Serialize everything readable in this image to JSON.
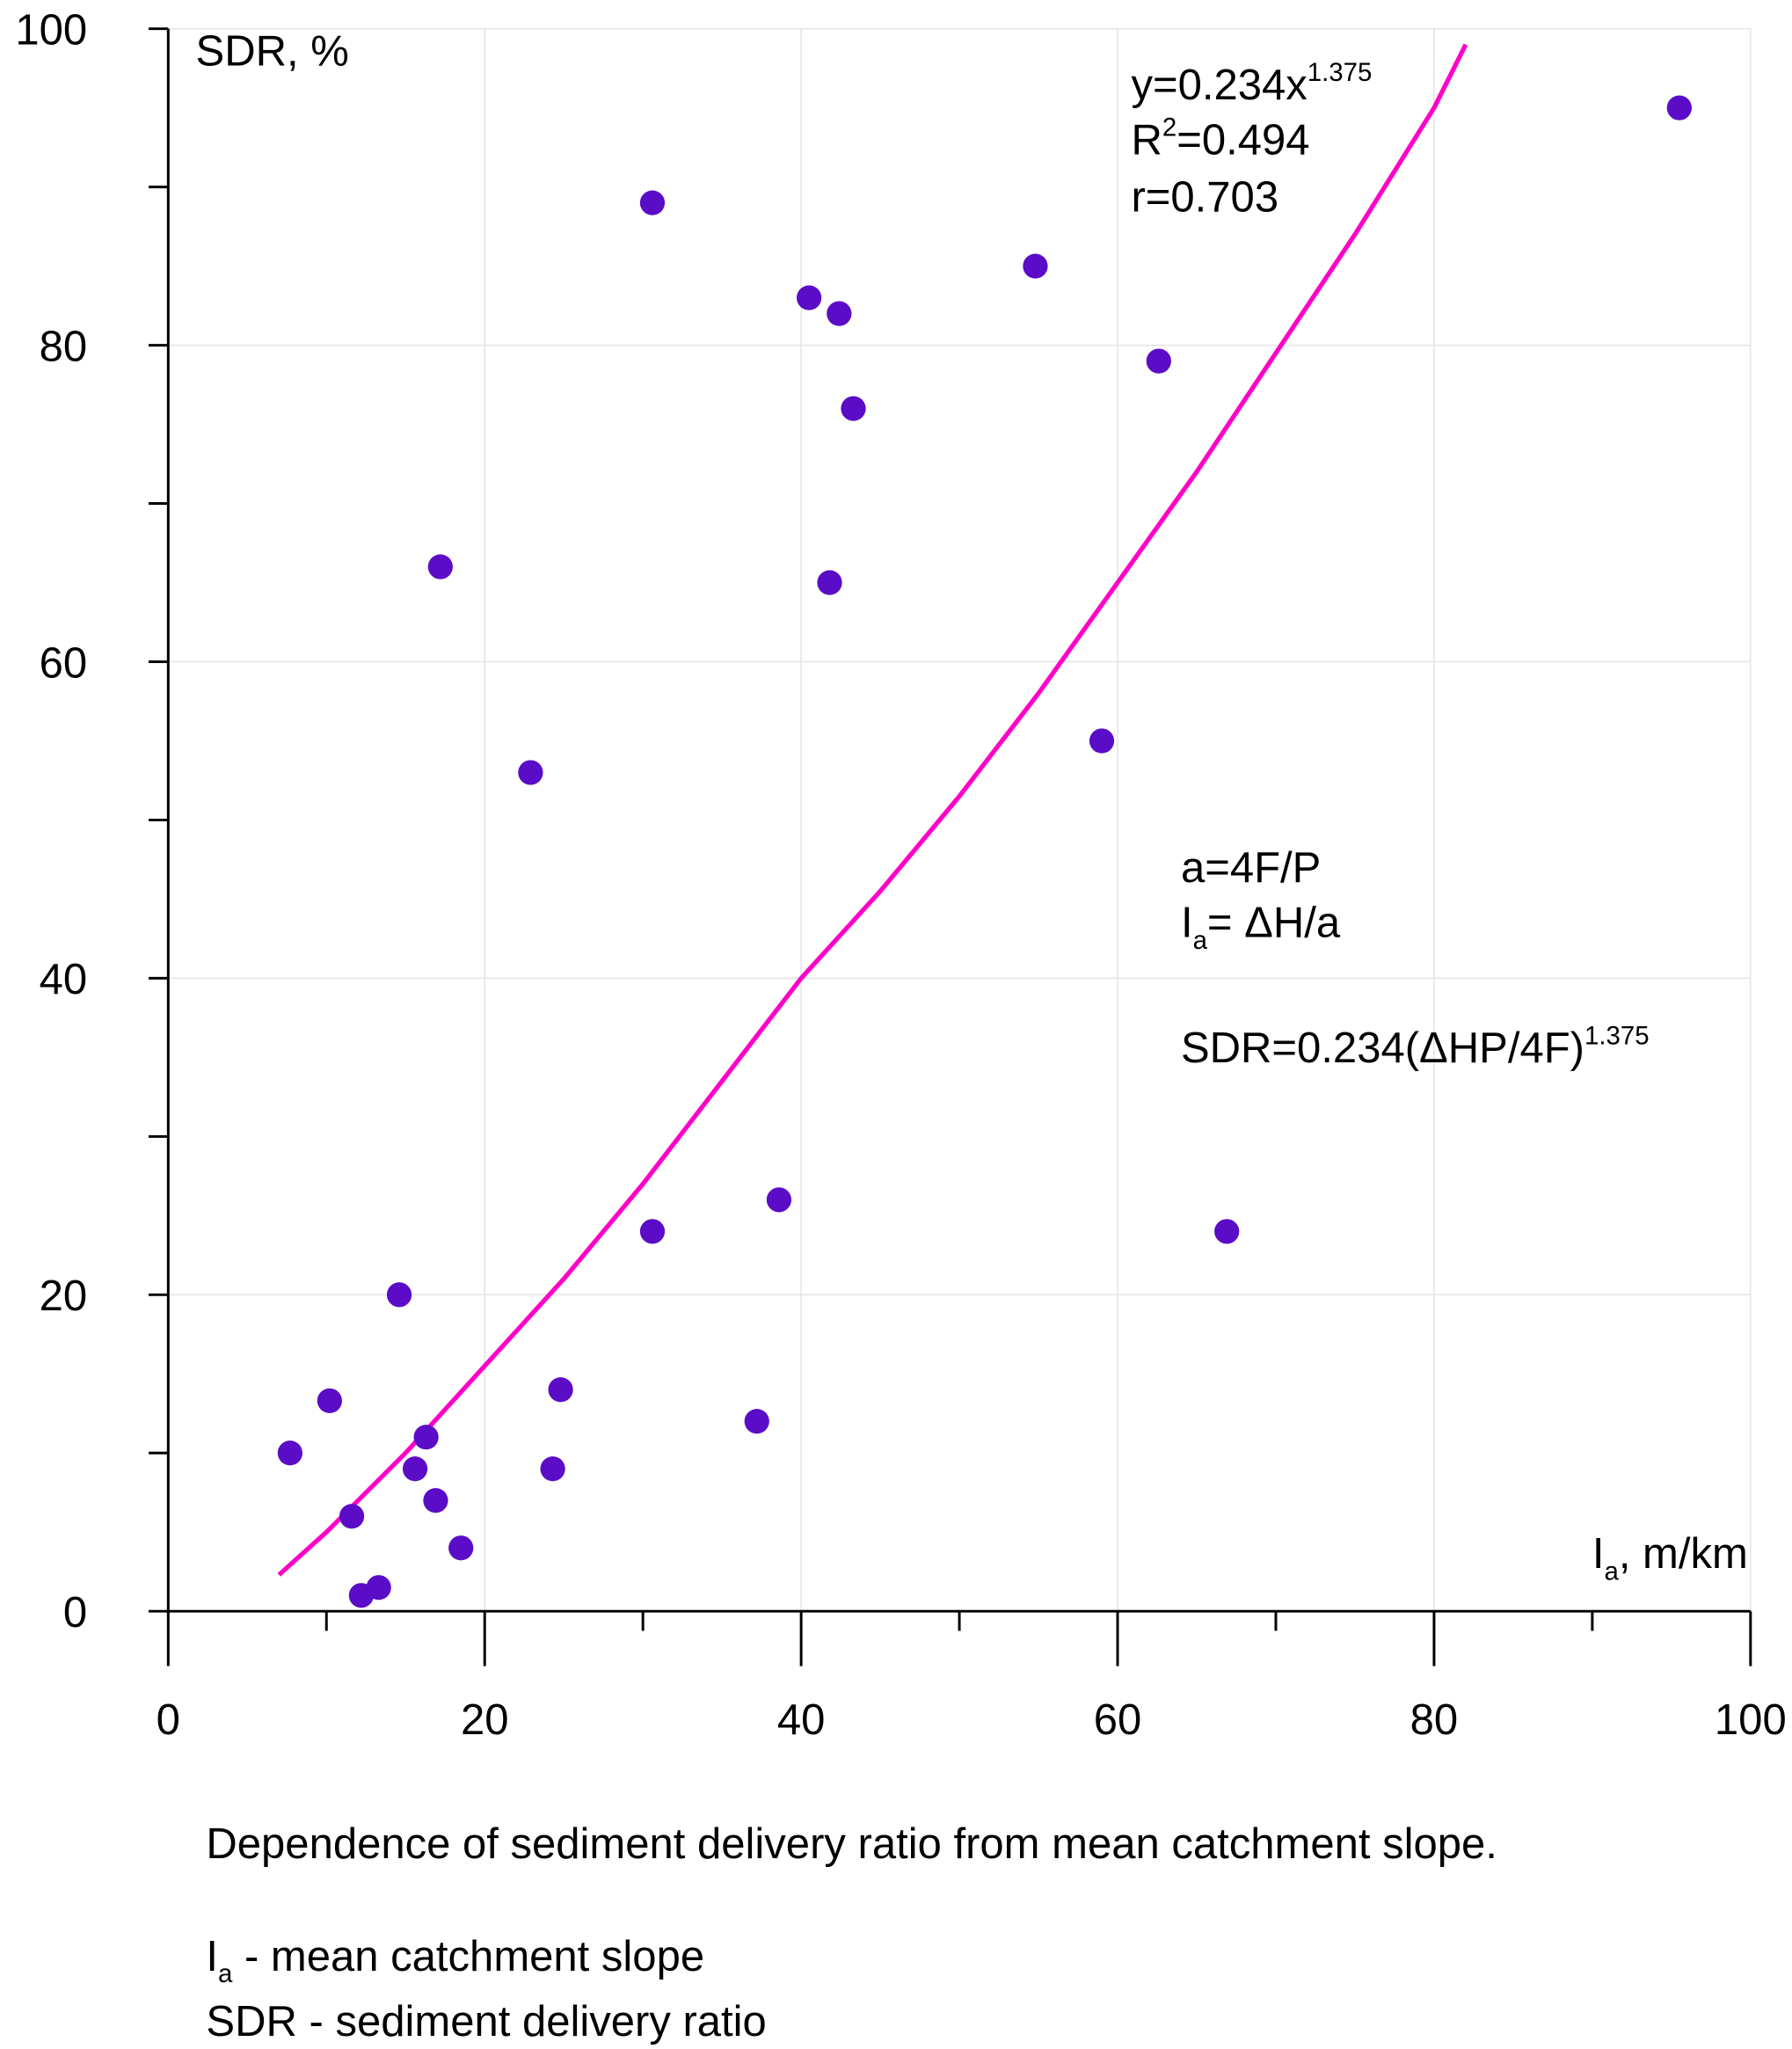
{
  "chart_data": {
    "type": "scatter",
    "x_label": [
      "I",
      "a",
      ", m/km"
    ],
    "y_label": "SDR, %",
    "xlim": [
      0,
      100
    ],
    "ylim": [
      0,
      100
    ],
    "xticks": [
      0,
      20,
      40,
      60,
      80,
      100
    ],
    "yticks": [
      0,
      20,
      40,
      60,
      80,
      100
    ],
    "minor_xticks": [
      10,
      30,
      50,
      70,
      90
    ],
    "minor_yticks": [
      10,
      30,
      50,
      70,
      90
    ],
    "grid": true,
    "series": [
      {
        "name": "SDR",
        "type": "scatter",
        "color": "#5b0cc7",
        "x": [
          95.5,
          30.6,
          40.5,
          42.4,
          54.8,
          62.6,
          43.3,
          17.2,
          41.8,
          22.9,
          59.0,
          38.6,
          30.6,
          66.9,
          14.6,
          24.8,
          10.2,
          37.2,
          7.7,
          16.3,
          15.6,
          24.3,
          16.9,
          11.6,
          18.5,
          13.3,
          12.2
        ],
        "values": [
          95,
          89,
          83,
          82,
          85,
          79,
          76,
          66,
          65,
          53,
          55,
          26,
          24,
          24,
          20,
          14,
          13.3,
          12,
          10,
          11,
          9,
          9,
          7,
          6,
          4,
          1.5,
          1
        ]
      },
      {
        "name": "fit",
        "type": "line",
        "color": "#ff00c8",
        "x": [
          7,
          10,
          15,
          20,
          25,
          30,
          35,
          40,
          45,
          50,
          55,
          60,
          65,
          70,
          75,
          80,
          82
        ],
        "values": [
          2.3,
          5,
          10,
          15.5,
          21,
          27,
          33.5,
          40,
          45.5,
          51.5,
          58,
          65,
          72,
          79.5,
          87,
          95,
          99
        ]
      }
    ],
    "annotations": [
      {
        "color": "#000000",
        "parts": [
          {
            "text": "y=0.234x"
          },
          {
            "text": "1.375",
            "sup": true
          }
        ]
      },
      {
        "color": "#000000",
        "parts": [
          {
            "text": "R"
          },
          {
            "text": "2",
            "sup": true
          },
          {
            "text": "=0.494"
          }
        ]
      },
      {
        "color": "#000000",
        "parts": [
          {
            "text": "r=0.703"
          }
        ]
      },
      {
        "color": "#000000",
        "parts": [
          {
            "text": "a=4F/P"
          }
        ]
      },
      {
        "color": "#000000",
        "parts": [
          {
            "text": "I"
          },
          {
            "text": "a",
            "sub": true
          },
          {
            "text": "= ΔH/a"
          }
        ]
      },
      {
        "color": "#ff0000",
        "parts": [
          {
            "text": "SDR=0.234(ΔHP/4F)"
          },
          {
            "text": "1.375",
            "sup": true
          }
        ]
      }
    ],
    "caption": [
      [
        {
          "text": "Dependence of sediment delivery ratio from mean catchment slope."
        }
      ],
      [
        {
          "text": "I"
        },
        {
          "text": "a",
          "sub": true
        },
        {
          "text": " - mean catchment slope"
        }
      ],
      [
        {
          "text": "SDR - sediment delivery ratio"
        }
      ]
    ]
  }
}
